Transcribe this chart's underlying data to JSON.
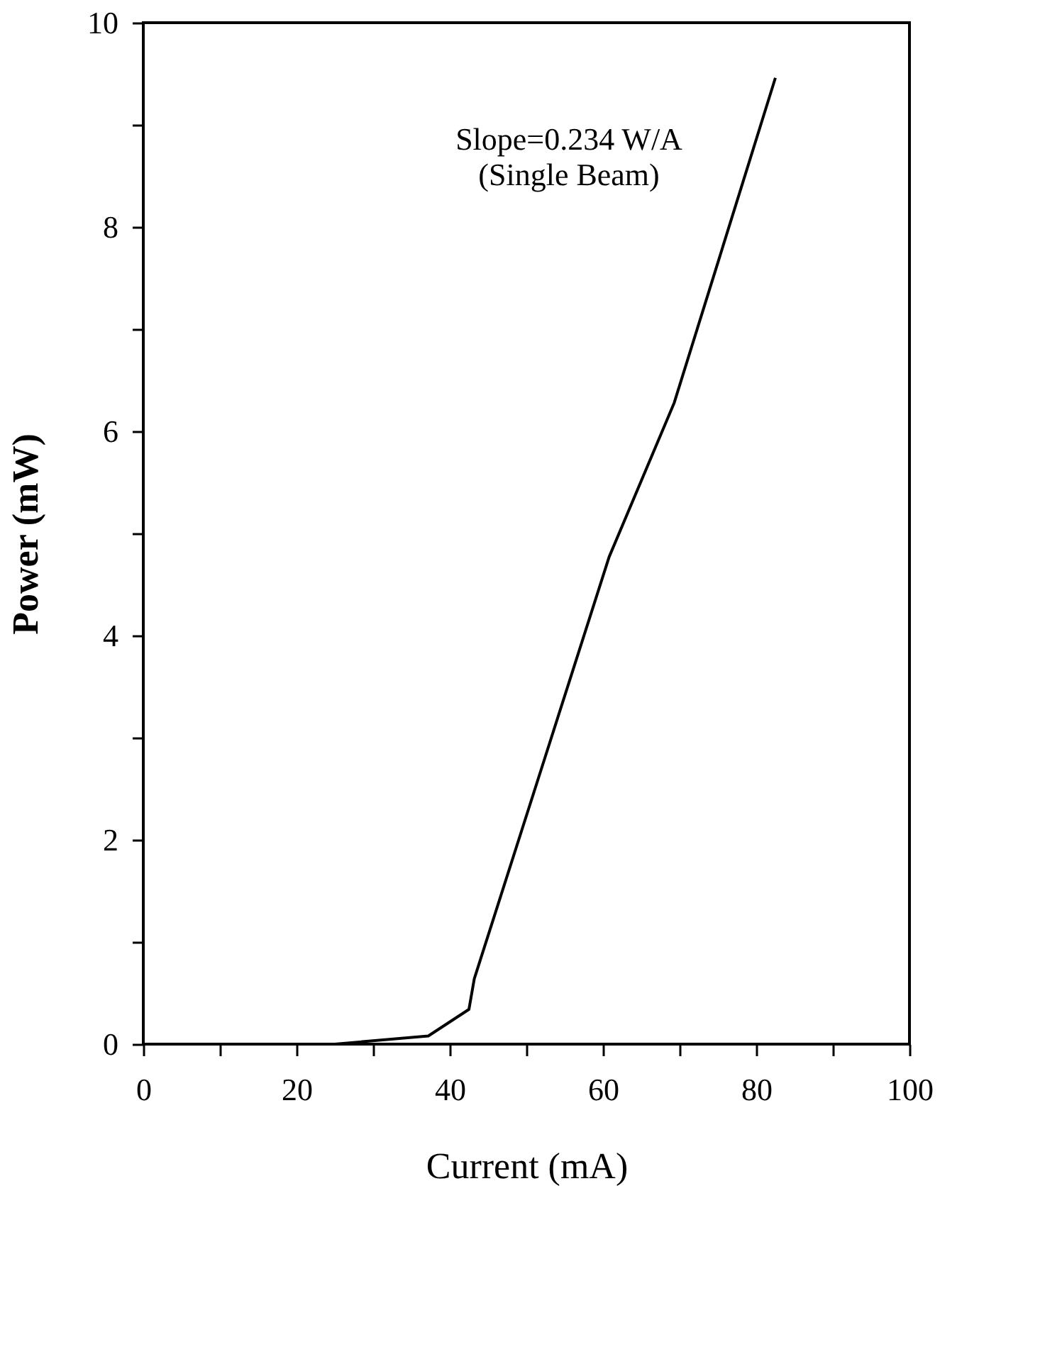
{
  "chart_data": {
    "type": "line",
    "xlabel": "Current (mA)",
    "ylabel": "Power (mW)",
    "x": [
      0,
      25,
      37.2,
      42.5,
      43.2,
      60.8,
      69.3,
      82.5
    ],
    "series": [
      {
        "color": "#000000",
        "values": [
          0,
          0,
          0.08,
          0.34,
          0.64,
          4.77,
          6.28,
          9.46
        ]
      }
    ],
    "xlim": [
      0,
      100
    ],
    "ylim": [
      0,
      10
    ],
    "xticks": [
      0,
      {
        "value": 10,
        "label": null
      },
      20,
      {
        "value": 30,
        "label": null
      },
      40,
      {
        "value": 50,
        "label": null
      },
      60,
      {
        "value": 70,
        "label": null
      },
      80,
      {
        "value": 90,
        "label": null
      },
      100
    ],
    "yticks": [
      0,
      {
        "value": 1,
        "label": null
      },
      2,
      {
        "value": 3,
        "label": null
      },
      4,
      {
        "value": 5,
        "label": null
      },
      6,
      {
        "value": 7,
        "label": null
      },
      8,
      {
        "value": 9,
        "label": null
      },
      10
    ],
    "annotations": [
      "Slope=0.234 W/A",
      "(Single Beam)"
    ],
    "grid": false,
    "legend": false,
    "marker": "none",
    "line_style": "solid"
  }
}
